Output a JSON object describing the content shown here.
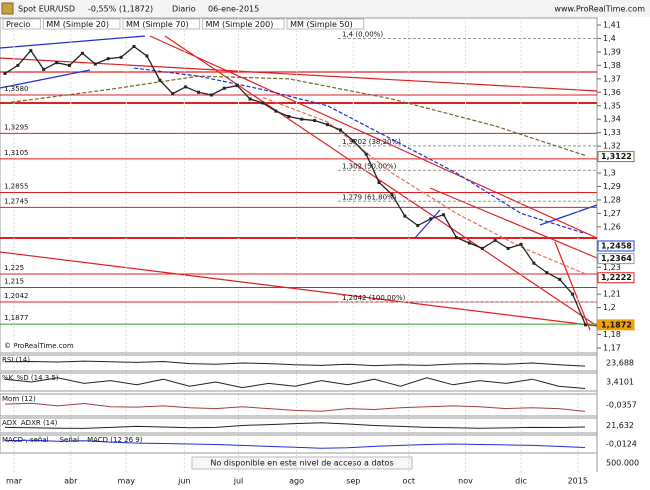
{
  "header": {
    "instrument": "Spot EUR/USD",
    "change": "-0,55% (1,1872)",
    "period": "Diario",
    "date": "06-ene-2015",
    "site": "www.ProRealTime.com",
    "copyright": "© ProRealTime.com"
  },
  "chart_data": {
    "type": "line",
    "legend": [
      "Precio"
    ],
    "xlim": [
      -0.3,
      46.3
    ],
    "xticks": [
      {
        "value": 0.7,
        "label": "mar"
      },
      {
        "value": 5.1,
        "label": "abr"
      },
      {
        "value": 9.4,
        "label": "may"
      },
      {
        "value": 13.9,
        "label": "jun"
      },
      {
        "value": 18.1,
        "label": "jul"
      },
      {
        "value": 22.6,
        "label": "ago"
      },
      {
        "value": 27.0,
        "label": "sep"
      },
      {
        "value": 31.3,
        "label": "oct"
      },
      {
        "value": 35.7,
        "label": "nov"
      },
      {
        "value": 40.0,
        "label": "dic"
      },
      {
        "value": 44.4,
        "label": "2015"
      }
    ],
    "ylim": [
      1.17,
      1.41
    ],
    "yticks": [
      {
        "value": 1.41,
        "label": "1,41"
      },
      {
        "value": 1.4,
        "label": "1,4"
      },
      {
        "value": 1.39,
        "label": "1,39"
      },
      {
        "value": 1.38,
        "label": "1,38"
      },
      {
        "value": 1.37,
        "label": "1,37"
      },
      {
        "value": 1.36,
        "label": "1,36"
      },
      {
        "value": 1.35,
        "label": "1,35"
      },
      {
        "value": 1.34,
        "label": "1,34"
      },
      {
        "value": 1.33,
        "label": "1,33"
      },
      {
        "value": 1.32,
        "label": "1,32"
      },
      {
        "value": 1.3,
        "label": "1,3"
      },
      {
        "value": 1.29,
        "label": "1,29"
      },
      {
        "value": 1.28,
        "label": "1,28"
      },
      {
        "value": 1.27,
        "label": "1,27"
      },
      {
        "value": 1.26,
        "label": "1,26"
      },
      {
        "value": 1.23,
        "label": "1,23"
      },
      {
        "value": 1.21,
        "label": "1,21"
      },
      {
        "value": 1.2,
        "label": "1,2"
      },
      {
        "value": 1.18,
        "label": "1,18"
      },
      {
        "value": 1.17,
        "label": "1,17"
      }
    ],
    "price": {
      "name": "Precio",
      "color": "#222222",
      "values": [
        1.374,
        1.38,
        1.391,
        1.377,
        1.382,
        1.38,
        1.389,
        1.381,
        1.385,
        1.386,
        1.394,
        1.387,
        1.369,
        1.359,
        1.364,
        1.36,
        1.358,
        1.363,
        1.365,
        1.355,
        1.352,
        1.346,
        1.342,
        1.34,
        1.339,
        1.336,
        1.332,
        1.324,
        1.314,
        1.293,
        1.284,
        1.268,
        1.261,
        1.266,
        1.269,
        1.252,
        1.248,
        1.244,
        1.25,
        1.244,
        1.247,
        1.233,
        1.226,
        1.221,
        1.21,
        1.1872
      ]
    },
    "series": [
      {
        "name": "MM (Simple 20)",
        "color": "#e07060",
        "x": [
          20,
          25,
          30,
          35,
          40,
          45
        ],
        "values": [
          1.356,
          1.338,
          1.3,
          1.27,
          1.245,
          1.225
        ]
      },
      {
        "name": "MM (Simple 70)",
        "color": "#2030d0",
        "x": [
          10,
          15,
          20,
          25,
          30,
          35,
          40,
          45
        ],
        "values": [
          1.378,
          1.372,
          1.362,
          1.35,
          1.325,
          1.3,
          1.27,
          1.255
        ]
      },
      {
        "name": "MM (Simple 200)",
        "color": "#6a6a2a",
        "x": [
          0,
          8,
          15,
          22,
          30,
          38,
          45
        ],
        "values": [
          1.352,
          1.362,
          1.372,
          1.37,
          1.355,
          1.335,
          1.313
        ]
      },
      {
        "name": "MM (Simple 50)",
        "color": "#c8c8c8",
        "x": [],
        "values": []
      }
    ],
    "levels": [
      {
        "value": 1.358,
        "label": "1,3580"
      },
      {
        "value": 1.3295,
        "label": "1,3295"
      },
      {
        "value": 1.3105,
        "label": "1,3105"
      },
      {
        "value": 1.2855,
        "label": "1,2855"
      },
      {
        "value": 1.2745,
        "label": "1,2745"
      },
      {
        "value": 1.225,
        "label": "1,225"
      },
      {
        "value": 1.215,
        "label": "1,215"
      },
      {
        "value": 1.2042,
        "label": "1,2042"
      },
      {
        "value": 1.1877,
        "label": "1,1877"
      }
    ],
    "level_color": "#e02020",
    "fib_levels": [
      {
        "value": 1.4,
        "label": "1,4 (0,00%)"
      },
      {
        "value": 1.3202,
        "label": "1,3202 (38,20%)"
      },
      {
        "value": 1.302,
        "label": "1,302 (50,00%)"
      },
      {
        "value": 1.279,
        "label": "1,279 (61,80%)"
      },
      {
        "value": 1.2042,
        "label": "1,2042 (100,00%)"
      }
    ],
    "price_markers": [
      {
        "value": 1.3122,
        "label": "1,3122",
        "color": "#7a7a30"
      },
      {
        "value": 1.2458,
        "label": "1,2458",
        "color": "#2040d0"
      },
      {
        "value": 1.2364,
        "label": "1,2364",
        "color": "#9090c0"
      },
      {
        "value": 1.2222,
        "label": "1,2222",
        "color": "#e02020"
      },
      {
        "value": 1.1872,
        "label": "1,1872",
        "color": "#f0a000"
      }
    ]
  },
  "panels": [
    {
      "labels": [
        "RSI (14)"
      ],
      "color": "#222222",
      "ylim": [
        0,
        100
      ],
      "last_label": "23,688",
      "values": [
        60,
        62,
        58,
        66,
        60,
        55,
        62,
        45,
        40,
        50,
        45,
        35,
        30,
        40,
        28,
        35,
        30,
        42,
        45,
        40,
        50,
        35,
        23.688
      ]
    },
    {
      "labels": [
        "%K",
        "%D (14 3 5)"
      ],
      "color": "#222222",
      "ylim": [
        0,
        100
      ],
      "last_label": "3,4101",
      "values": [
        70,
        50,
        80,
        40,
        60,
        30,
        70,
        20,
        50,
        10,
        40,
        20,
        60,
        30,
        70,
        20,
        80,
        30,
        60,
        40,
        70,
        20,
        3.4101
      ]
    },
    {
      "labels": [
        "Mom (12)"
      ],
      "color": "#a04040",
      "ylim": [
        -0.05,
        0.05
      ],
      "last_label": "-0,0357",
      "values": [
        0.005,
        0.01,
        -0.005,
        0.008,
        -0.01,
        -0.012,
        -0.005,
        -0.015,
        -0.02,
        -0.01,
        -0.02,
        -0.03,
        -0.035,
        -0.02,
        -0.025,
        -0.015,
        -0.01,
        -0.005,
        -0.01,
        -0.02,
        -0.015,
        -0.02,
        -0.0357
      ]
    },
    {
      "labels": [
        "ADX",
        "ADXR (14)"
      ],
      "color": "#222222",
      "ylim": [
        0,
        60
      ],
      "last_label": "21,632",
      "values": [
        20,
        18,
        15,
        14,
        20,
        25,
        22,
        18,
        20,
        30,
        35,
        40,
        45,
        38,
        30,
        25,
        20,
        18,
        15,
        17,
        20,
        19,
        21.632
      ]
    },
    {
      "labels": [
        "MACD-, señal",
        "Señal",
        "MACD (12 26 9)"
      ],
      "color": "#2030d0",
      "ylim": [
        -0.02,
        0.01
      ],
      "last_label": "-0,0124",
      "values": [
        0.002,
        0.003,
        0.001,
        0.002,
        -0.001,
        -0.003,
        -0.004,
        -0.005,
        -0.006,
        -0.008,
        -0.01,
        -0.012,
        -0.014,
        -0.013,
        -0.01,
        -0.008,
        -0.006,
        -0.005,
        -0.006,
        -0.007,
        -0.008,
        -0.01,
        -0.0124
      ]
    }
  ],
  "volume": {
    "note": "No disponible en este nivel de acceso a datos",
    "scale_label": "500.000"
  }
}
